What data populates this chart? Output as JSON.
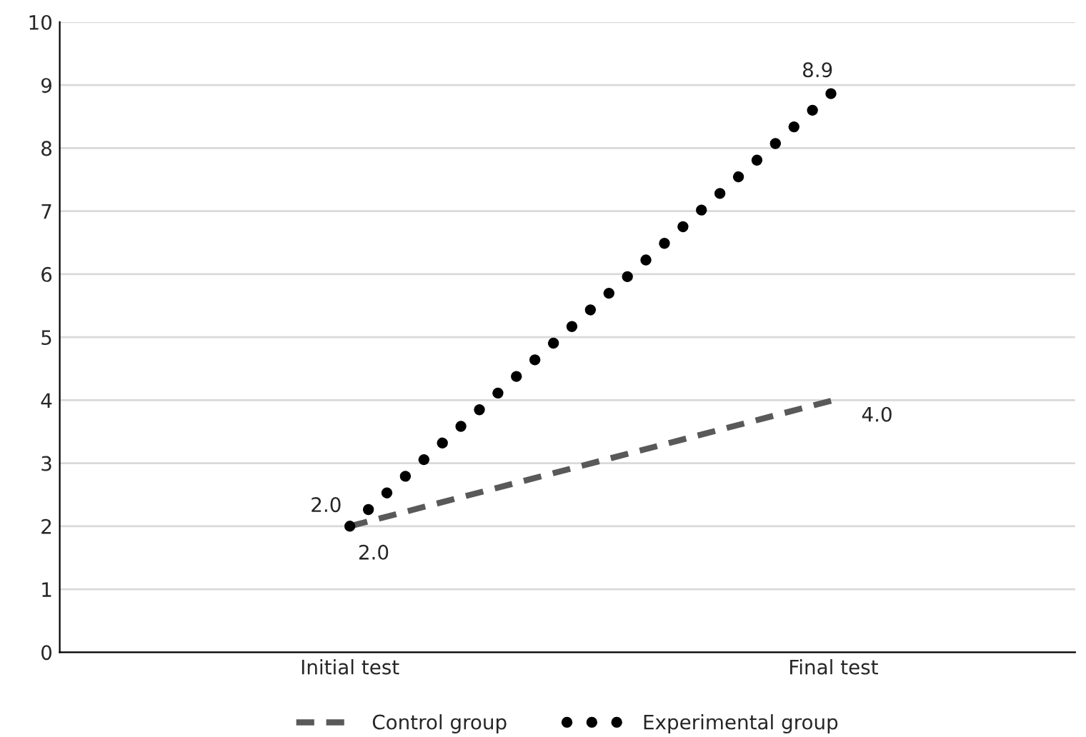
{
  "chart_data": {
    "type": "line",
    "categories": [
      "Initial test",
      "Final test"
    ],
    "series": [
      {
        "name": "Control group",
        "color": "#595959",
        "values": [
          2.0,
          4.0
        ],
        "value_labels": [
          "2.0",
          "4.0"
        ],
        "line_style": "dashed"
      },
      {
        "name": "Experimental group",
        "color": "#000000",
        "values": [
          2.0,
          8.9
        ],
        "value_labels": [
          "2.0",
          "8.9"
        ],
        "line_style": "dotted"
      }
    ],
    "ylim": [
      0,
      10
    ],
    "yticks": [
      0,
      1,
      2,
      3,
      4,
      5,
      6,
      7,
      8,
      9,
      10
    ],
    "grid": "y",
    "legend": "bottom",
    "data_labels": true,
    "marker": "none"
  }
}
